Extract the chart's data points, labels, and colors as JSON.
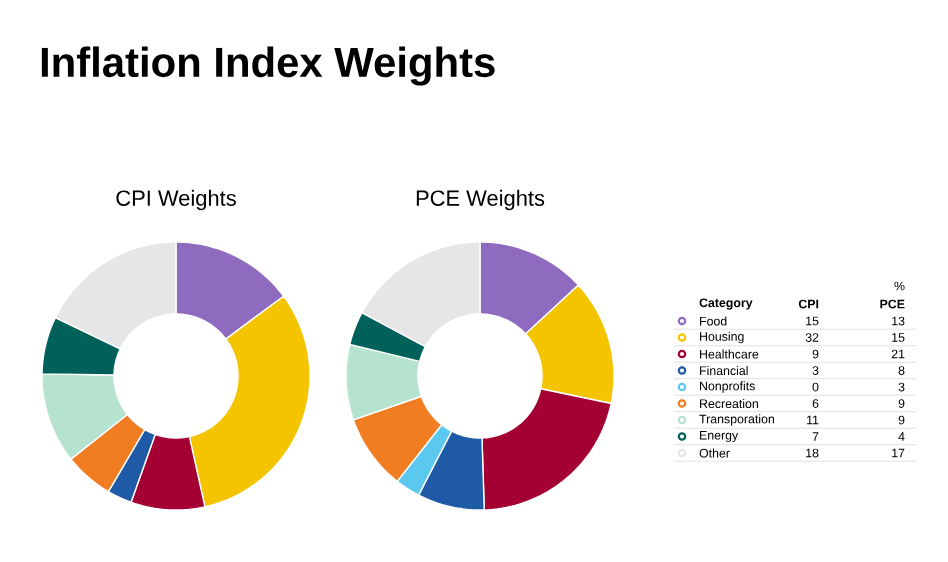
{
  "chart_data": {
    "type": "donut",
    "title": "Inflation Index Weights",
    "categories": [
      "Food",
      "Housing",
      "Healthcare",
      "Financial",
      "Nonprofits",
      "Recreation",
      "Transporation",
      "Energy",
      "Other"
    ],
    "colors": [
      "#8e6bbf",
      "#f5c400",
      "#a50034",
      "#1f5aa6",
      "#5bc8ef",
      "#f07d22",
      "#b6e3cf",
      "#00605a",
      "#e6e6e6"
    ],
    "series": [
      {
        "name": "CPI Weights",
        "values": [
          15,
          32,
          9,
          3,
          0,
          6,
          11,
          7,
          18
        ],
        "value_labels": [
          "15",
          "32",
          "9",
          "3",
          "0",
          "6",
          "11",
          "7",
          "18"
        ]
      },
      {
        "name": "PCE Weights",
        "values": [
          13,
          15,
          21,
          8,
          3,
          9,
          9,
          4,
          17
        ],
        "value_labels": [
          "13",
          "15",
          "21",
          "8",
          "3",
          "9",
          "9",
          "4",
          "17"
        ]
      }
    ],
    "annotations": [
      "CPI",
      "PCE",
      "%"
    ],
    "legend": "right",
    "legend_title": "Category"
  }
}
